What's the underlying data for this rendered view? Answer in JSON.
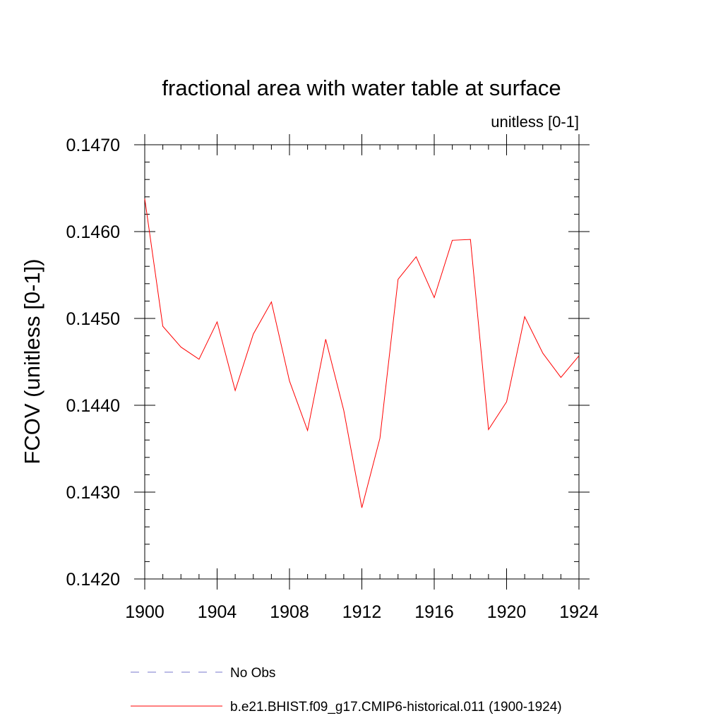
{
  "chart_data": {
    "type": "line",
    "title": "fractional area with water table at surface",
    "units_label": "unitless [0-1]",
    "ylabel": "FCOV  (unitless [0-1])",
    "xlabel": "",
    "xlim": [
      1900,
      1924
    ],
    "ylim": [
      0.142,
      0.147
    ],
    "x_ticks": [
      "1900",
      "1904",
      "1908",
      "1912",
      "1916",
      "1920",
      "1924"
    ],
    "x_tick_values": [
      1900,
      1904,
      1908,
      1912,
      1916,
      1920,
      1924
    ],
    "y_ticks": [
      "0.1420",
      "0.1430",
      "0.1440",
      "0.1450",
      "0.1460",
      "0.1470"
    ],
    "y_tick_values": [
      0.142,
      0.143,
      0.144,
      0.145,
      0.146,
      0.147
    ],
    "grid": false,
    "legend_position": "bottom",
    "series": [
      {
        "name": "b.e21.BHIST.f09_g17.CMIP6-historical.011 (1900-1924)",
        "color": "#ff0000",
        "style": "solid",
        "x": [
          1900,
          1901,
          1902,
          1903,
          1904,
          1905,
          1906,
          1907,
          1908,
          1909,
          1910,
          1911,
          1912,
          1913,
          1914,
          1915,
          1916,
          1917,
          1918,
          1919,
          1920,
          1921,
          1922,
          1923,
          1924
        ],
        "y": [
          0.14638,
          0.14491,
          0.14467,
          0.14453,
          0.14496,
          0.14417,
          0.14482,
          0.14519,
          0.14428,
          0.14371,
          0.14476,
          0.14394,
          0.14282,
          0.14362,
          0.14545,
          0.14571,
          0.14524,
          0.1459,
          0.14591,
          0.14372,
          0.14404,
          0.14502,
          0.1446,
          0.14432,
          0.14457
        ]
      }
    ],
    "legend": [
      {
        "label": "No Obs",
        "color": "#7777cc",
        "style": "dashed"
      },
      {
        "label": "b.e21.BHIST.f09_g17.CMIP6-historical.011 (1900-1924)",
        "color": "#ff0000",
        "style": "solid"
      }
    ]
  }
}
